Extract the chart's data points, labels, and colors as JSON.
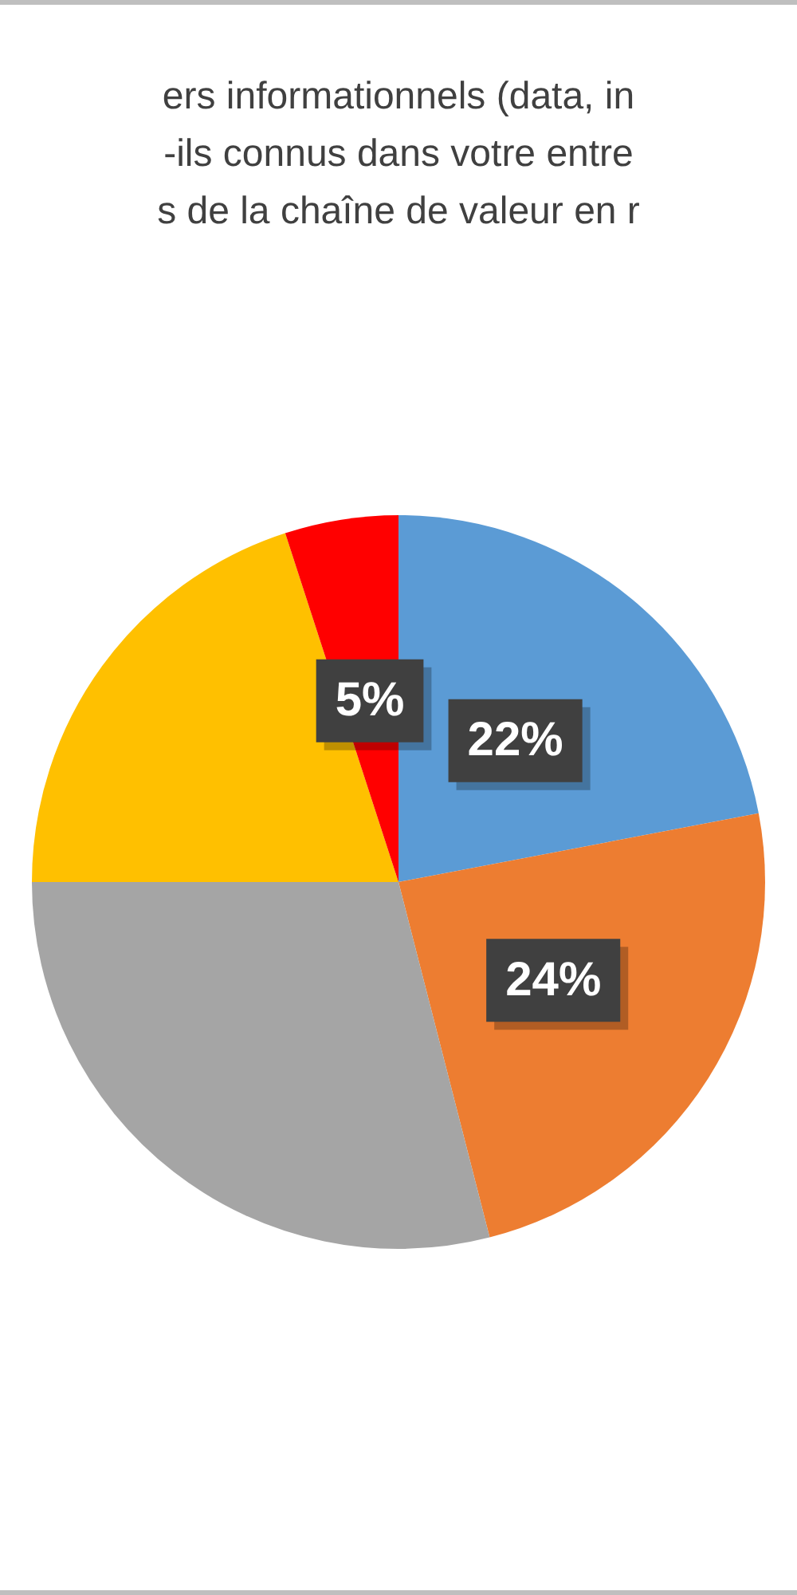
{
  "chart_data": {
    "type": "pie",
    "title": "ers informationnels (data, in\n-ils connus dans votre entre\ns de la chaîne de valeur en r",
    "categories": [
      null,
      null,
      null,
      null,
      null
    ],
    "values": [
      22,
      24,
      29,
      20,
      5
    ],
    "colors": [
      "#5b9bd5",
      "#ed7d31",
      "#a5a5a5",
      "#ffc000",
      "#ff0000"
    ],
    "value_labels": [
      "22%",
      "24%",
      null,
      null,
      "5%"
    ],
    "legend": false
  }
}
